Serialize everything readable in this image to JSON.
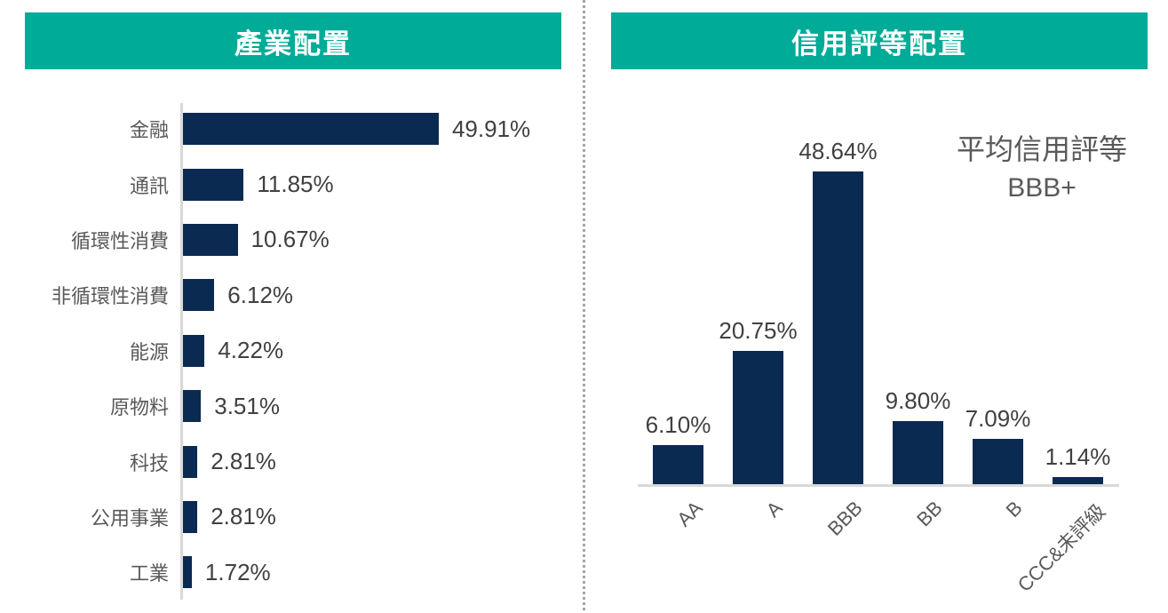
{
  "colors": {
    "header_teal": "#00ab97",
    "bar_navy": "#0a2a52",
    "axis_gray": "#d9d9d9",
    "category_gray": "#595959",
    "value_gray": "#404040",
    "divider_gray": "#a6a6a6"
  },
  "left_panel": {
    "title": "產業配置"
  },
  "right_panel": {
    "title": "信用評等配置",
    "annotation_line1": "平均信用評等",
    "annotation_line2": "BBB+"
  },
  "chart_data": [
    {
      "type": "bar",
      "orientation": "horizontal",
      "title": "產業配置",
      "categories": [
        "金融",
        "通訊",
        "循環性消費",
        "非循環性消費",
        "能源",
        "原物料",
        "科技",
        "公用事業",
        "工業"
      ],
      "values": [
        49.91,
        11.85,
        10.67,
        6.12,
        4.22,
        3.51,
        2.81,
        2.81,
        1.72
      ],
      "value_labels": [
        "49.91%",
        "11.85%",
        "10.67%",
        "6.12%",
        "4.22%",
        "3.51%",
        "2.81%",
        "2.81%",
        "1.72%"
      ],
      "bar_color": "#0a2a52",
      "xlim": [
        0,
        60
      ],
      "grid": false,
      "legend": "none"
    },
    {
      "type": "bar",
      "orientation": "vertical",
      "title": "信用評等配置",
      "categories": [
        "AA",
        "A",
        "BBB",
        "BB",
        "B",
        "CCC&未評級"
      ],
      "values": [
        6.1,
        20.75,
        48.64,
        9.8,
        7.09,
        1.14
      ],
      "value_labels": [
        "6.10%",
        "20.75%",
        "48.64%",
        "9.80%",
        "7.09%",
        "1.14%"
      ],
      "annotation": "平均信用評等 BBB+",
      "bar_color": "#0a2a52",
      "ylim": [
        0,
        55
      ],
      "grid": false,
      "legend": "none"
    }
  ]
}
